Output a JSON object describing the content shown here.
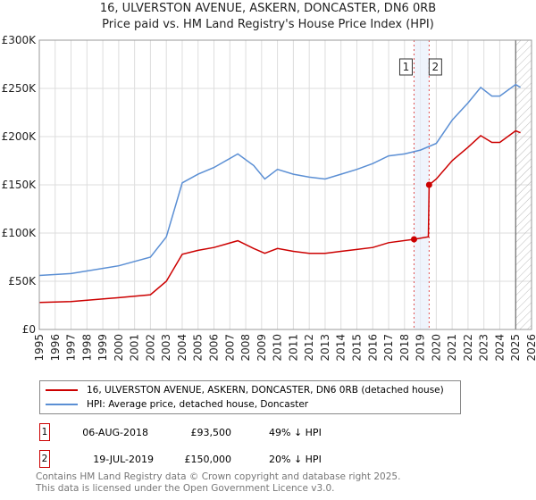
{
  "title": "16, ULVERSTON AVENUE, ASKERN, DONCASTER, DN6 0RB",
  "subtitle": "Price paid vs. HM Land Registry's House Price Index (HPI)",
  "chart_data": {
    "type": "line",
    "xlim": [
      1995,
      2026
    ],
    "ylim": [
      0,
      300000
    ],
    "x_ticks": [
      "1995",
      "1996",
      "1997",
      "1998",
      "1999",
      "2000",
      "2001",
      "2002",
      "2003",
      "2004",
      "2005",
      "2006",
      "2007",
      "2008",
      "2009",
      "2010",
      "2011",
      "2012",
      "2013",
      "2014",
      "2015",
      "2016",
      "2017",
      "2018",
      "2019",
      "2020",
      "2021",
      "2022",
      "2023",
      "2024",
      "2025",
      "2026"
    ],
    "y_ticks": [
      {
        "v": 0,
        "label": "£0"
      },
      {
        "v": 50000,
        "label": "£50K"
      },
      {
        "v": 100000,
        "label": "£100K"
      },
      {
        "v": 150000,
        "label": "£150K"
      },
      {
        "v": 200000,
        "label": "£200K"
      },
      {
        "v": 250000,
        "label": "£250K"
      },
      {
        "v": 300000,
        "label": "£300K"
      }
    ],
    "series": [
      {
        "name": "16, ULVERSTON AVENUE, ASKERN, DONCASTER, DN6 0RB (detached house)",
        "color": "#cc0000",
        "x": [
          1995,
          1997,
          2000,
          2002,
          2003,
          2004,
          2005,
          2006,
          2007.5,
          2008.5,
          2009.2,
          2010,
          2011,
          2012,
          2013,
          2014,
          2015,
          2016,
          2017,
          2018.6,
          2019.5,
          2019.55,
          2020,
          2021,
          2022,
          2022.8,
          2023.5,
          2024,
          2025,
          2025.3
        ],
        "y": [
          28000,
          29000,
          33000,
          36000,
          50000,
          78000,
          82000,
          85000,
          92000,
          84000,
          79000,
          84000,
          81000,
          79000,
          79000,
          81000,
          83000,
          85000,
          90000,
          93500,
          96000,
          150000,
          156000,
          175000,
          189000,
          201000,
          194000,
          194000,
          206000,
          204000
        ]
      },
      {
        "name": "HPI: Average price, detached house, Doncaster",
        "color": "#5b8fd4",
        "x": [
          1995,
          1997,
          2000,
          2002,
          2003,
          2004,
          2005,
          2006,
          2007.5,
          2008.5,
          2009.2,
          2010,
          2011,
          2012,
          2013,
          2014,
          2015,
          2016,
          2017,
          2018,
          2019,
          2020,
          2021,
          2022,
          2022.8,
          2023.5,
          2024,
          2025,
          2025.3
        ],
        "y": [
          56000,
          58000,
          66000,
          75000,
          96000,
          152000,
          161000,
          168000,
          182000,
          170000,
          156000,
          166000,
          161000,
          158000,
          156000,
          161000,
          166000,
          172000,
          180000,
          182000,
          186000,
          193000,
          217000,
          235000,
          251000,
          242000,
          242000,
          254000,
          251000
        ]
      }
    ],
    "sales": [
      {
        "n": "1",
        "x": 2018.6,
        "y": 93500
      },
      {
        "n": "2",
        "x": 2019.55,
        "y": 150000
      }
    ],
    "forecast_from": 2025
  },
  "legend": [
    "16, ULVERSTON AVENUE, ASKERN, DONCASTER, DN6 0RB (detached house)",
    "HPI: Average price, detached house, Doncaster"
  ],
  "transactions": [
    {
      "n": "1",
      "date": "06-AUG-2018",
      "price": "£93,500",
      "hpi": "49% ↓ HPI"
    },
    {
      "n": "2",
      "date": "19-JUL-2019",
      "price": "£150,000",
      "hpi": "20% ↓ HPI"
    }
  ],
  "footer": [
    "Contains HM Land Registry data © Crown copyright and database right 2025.",
    "This data is licensed under the Open Government Licence v3.0."
  ]
}
